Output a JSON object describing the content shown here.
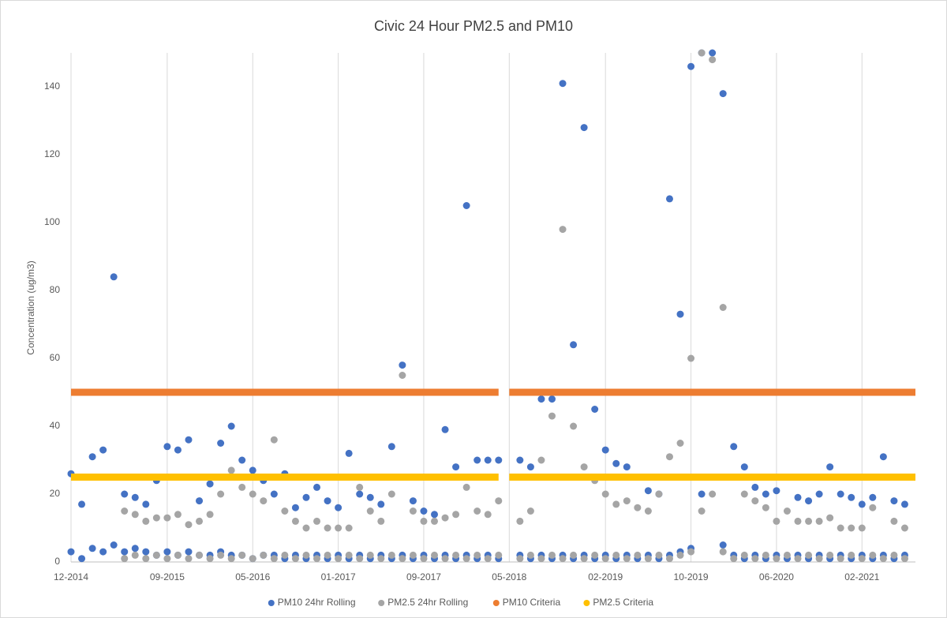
{
  "chart_data": {
    "type": "scatter",
    "title": "Civic 24 Hour PM2.5 and PM10",
    "y_label": "Concentration (ug/m3)",
    "xlim": [
      "12-2014",
      "07-2021"
    ],
    "xticks": [
      "12-2014",
      "09-2015",
      "05-2016",
      "01-2017",
      "09-2017",
      "05-2018",
      "02-2019",
      "10-2019",
      "06-2020",
      "02-2021"
    ],
    "ylim": [
      0,
      150
    ],
    "yticks": [
      0,
      20,
      40,
      60,
      80,
      100,
      120,
      140
    ],
    "grid": "x",
    "legend": "bottom",
    "series": [
      {
        "name": "PM10 24hr Rolling",
        "color": "#4472c4",
        "line": false,
        "x": [
          "12-2014",
          "12-2014",
          "01-2015",
          "01-2015",
          "02-2015",
          "02-2015",
          "03-2015",
          "03-2015",
          "04-2015",
          "04-2015",
          "05-2015",
          "05-2015",
          "06-2015",
          "06-2015",
          "07-2015",
          "07-2015",
          "08-2015",
          "08-2015",
          "09-2015",
          "09-2015",
          "10-2015",
          "10-2015",
          "11-2015",
          "11-2015",
          "12-2015",
          "12-2015",
          "01-2016",
          "01-2016",
          "02-2016",
          "02-2016",
          "03-2016",
          "03-2016",
          "04-2016",
          "04-2016",
          "05-2016",
          "05-2016",
          "06-2016",
          "06-2016",
          "07-2016",
          "07-2016",
          "08-2016",
          "08-2016",
          "09-2016",
          "09-2016",
          "10-2016",
          "10-2016",
          "11-2016",
          "11-2016",
          "12-2016",
          "12-2016",
          "01-2017",
          "01-2017",
          "02-2017",
          "02-2017",
          "03-2017",
          "03-2017",
          "04-2017",
          "04-2017",
          "05-2017",
          "05-2017",
          "06-2017",
          "06-2017",
          "07-2017",
          "07-2017",
          "08-2017",
          "08-2017",
          "09-2017",
          "09-2017",
          "10-2017",
          "10-2017",
          "11-2017",
          "11-2017",
          "12-2017",
          "12-2017",
          "01-2018",
          "01-2018",
          "02-2018",
          "02-2018",
          "03-2018",
          "03-2018",
          "04-2018",
          "04-2018",
          "06-2018",
          "06-2018",
          "07-2018",
          "07-2018",
          "08-2018",
          "08-2018",
          "09-2018",
          "09-2018",
          "10-2018",
          "10-2018",
          "11-2018",
          "11-2018",
          "12-2018",
          "12-2018",
          "01-2019",
          "01-2019",
          "02-2019",
          "02-2019",
          "03-2019",
          "03-2019",
          "04-2019",
          "04-2019",
          "05-2019",
          "05-2019",
          "06-2019",
          "06-2019",
          "07-2019",
          "07-2019",
          "08-2019",
          "08-2019",
          "09-2019",
          "09-2019",
          "10-2019",
          "10-2019",
          "11-2019",
          "11-2019",
          "12-2019",
          "12-2019",
          "01-2020",
          "01-2020",
          "02-2020",
          "02-2020",
          "03-2020",
          "03-2020",
          "04-2020",
          "04-2020",
          "05-2020",
          "05-2020",
          "06-2020",
          "06-2020",
          "07-2020",
          "07-2020",
          "08-2020",
          "08-2020",
          "09-2020",
          "09-2020",
          "10-2020",
          "10-2020",
          "11-2020",
          "11-2020",
          "12-2020",
          "12-2020",
          "01-2021",
          "01-2021",
          "02-2021",
          "02-2021",
          "03-2021",
          "03-2021",
          "04-2021",
          "04-2021",
          "05-2021",
          "05-2021",
          "06-2021",
          "06-2021"
        ],
        "values": [
          26,
          3,
          17,
          1,
          31,
          4,
          33,
          3,
          84,
          5,
          20,
          3,
          19,
          4,
          17,
          3,
          24,
          2,
          34,
          3,
          33,
          2,
          36,
          3,
          18,
          2,
          23,
          2,
          35,
          3,
          40,
          2,
          30,
          2,
          27,
          1,
          24,
          2,
          20,
          2,
          26,
          1,
          16,
          2,
          19,
          1,
          22,
          2,
          18,
          1,
          16,
          2,
          32,
          1,
          20,
          2,
          19,
          1,
          17,
          2,
          34,
          1,
          58,
          2,
          18,
          1,
          15,
          2,
          14,
          1,
          39,
          2,
          28,
          1,
          105,
          2,
          30,
          1,
          30,
          2,
          30,
          1,
          30,
          2,
          28,
          1,
          48,
          2,
          48,
          1,
          141,
          2,
          64,
          1,
          128,
          2,
          45,
          1,
          33,
          2,
          29,
          1,
          28,
          2,
          25,
          1,
          21,
          2,
          20,
          1,
          107,
          2,
          73,
          3,
          146,
          4,
          150,
          20,
          150,
          25,
          138,
          5,
          34,
          2,
          28,
          1,
          22,
          2,
          20,
          1,
          21,
          2,
          25,
          1,
          19,
          2,
          18,
          1,
          20,
          2,
          28,
          1,
          20,
          2,
          19,
          1,
          17,
          2,
          19,
          1,
          31,
          2,
          18,
          1,
          17,
          2
        ]
      },
      {
        "name": "PM2.5 24hr Rolling",
        "color": "#a5a5a5",
        "line": false,
        "x": [
          "05-2015",
          "05-2015",
          "06-2015",
          "06-2015",
          "07-2015",
          "07-2015",
          "08-2015",
          "08-2015",
          "09-2015",
          "09-2015",
          "10-2015",
          "10-2015",
          "11-2015",
          "11-2015",
          "12-2015",
          "12-2015",
          "01-2016",
          "01-2016",
          "02-2016",
          "02-2016",
          "03-2016",
          "03-2016",
          "04-2016",
          "04-2016",
          "05-2016",
          "05-2016",
          "06-2016",
          "06-2016",
          "07-2016",
          "07-2016",
          "08-2016",
          "08-2016",
          "09-2016",
          "09-2016",
          "10-2016",
          "10-2016",
          "11-2016",
          "11-2016",
          "12-2016",
          "12-2016",
          "01-2017",
          "01-2017",
          "02-2017",
          "02-2017",
          "03-2017",
          "03-2017",
          "04-2017",
          "04-2017",
          "05-2017",
          "05-2017",
          "06-2017",
          "06-2017",
          "07-2017",
          "07-2017",
          "08-2017",
          "08-2017",
          "09-2017",
          "09-2017",
          "10-2017",
          "10-2017",
          "11-2017",
          "11-2017",
          "12-2017",
          "12-2017",
          "01-2018",
          "01-2018",
          "02-2018",
          "02-2018",
          "03-2018",
          "03-2018",
          "04-2018",
          "04-2018",
          "06-2018",
          "06-2018",
          "07-2018",
          "07-2018",
          "08-2018",
          "08-2018",
          "09-2018",
          "09-2018",
          "10-2018",
          "10-2018",
          "11-2018",
          "11-2018",
          "12-2018",
          "12-2018",
          "01-2019",
          "01-2019",
          "02-2019",
          "02-2019",
          "03-2019",
          "03-2019",
          "04-2019",
          "04-2019",
          "05-2019",
          "05-2019",
          "06-2019",
          "06-2019",
          "07-2019",
          "07-2019",
          "08-2019",
          "08-2019",
          "09-2019",
          "09-2019",
          "10-2019",
          "10-2019",
          "11-2019",
          "11-2019",
          "12-2019",
          "12-2019",
          "01-2020",
          "01-2020",
          "02-2020",
          "02-2020",
          "03-2020",
          "03-2020",
          "04-2020",
          "04-2020",
          "05-2020",
          "05-2020",
          "06-2020",
          "06-2020",
          "07-2020",
          "07-2020",
          "08-2020",
          "08-2020",
          "09-2020",
          "09-2020",
          "10-2020",
          "10-2020",
          "11-2020",
          "11-2020",
          "12-2020",
          "12-2020",
          "01-2021",
          "01-2021",
          "02-2021",
          "02-2021",
          "03-2021",
          "03-2021",
          "04-2021",
          "04-2021",
          "05-2021",
          "05-2021",
          "06-2021",
          "06-2021"
        ],
        "values": [
          15,
          1,
          14,
          2,
          12,
          1,
          13,
          2,
          13,
          1,
          14,
          2,
          11,
          1,
          12,
          2,
          14,
          1,
          20,
          2,
          27,
          1,
          22,
          2,
          20,
          1,
          18,
          2,
          36,
          1,
          15,
          2,
          12,
          1,
          10,
          2,
          12,
          1,
          10,
          2,
          10,
          1,
          10,
          2,
          22,
          1,
          15,
          2,
          12,
          1,
          20,
          2,
          55,
          1,
          15,
          2,
          12,
          1,
          12,
          2,
          13,
          1,
          14,
          2,
          22,
          1,
          15,
          2,
          14,
          1,
          18,
          2,
          12,
          1,
          15,
          2,
          30,
          1,
          43,
          2,
          98,
          1,
          40,
          2,
          28,
          1,
          24,
          2,
          20,
          1,
          17,
          2,
          18,
          1,
          16,
          2,
          15,
          1,
          20,
          2,
          31,
          1,
          35,
          2,
          60,
          3,
          150,
          15,
          148,
          20,
          75,
          3,
          25,
          1,
          20,
          2,
          18,
          1,
          16,
          2,
          12,
          1,
          15,
          2,
          12,
          1,
          12,
          2,
          12,
          1,
          13,
          2,
          10,
          1,
          10,
          2,
          10,
          1,
          16,
          2,
          25,
          1,
          12,
          2,
          10,
          1
        ]
      },
      {
        "name": "PM10 Criteria",
        "color": "#ed7d31",
        "line": true,
        "x": [
          "12-2014",
          "04-2018",
          "04-2018",
          "05-2018",
          "07-2021"
        ],
        "values": [
          50,
          50,
          null,
          50,
          50
        ]
      },
      {
        "name": "PM2.5 Criteria",
        "color": "#ffc000",
        "line": true,
        "x": [
          "12-2014",
          "04-2018",
          "04-2018",
          "05-2018",
          "07-2021"
        ],
        "values": [
          25,
          25,
          null,
          25,
          25
        ]
      }
    ]
  }
}
